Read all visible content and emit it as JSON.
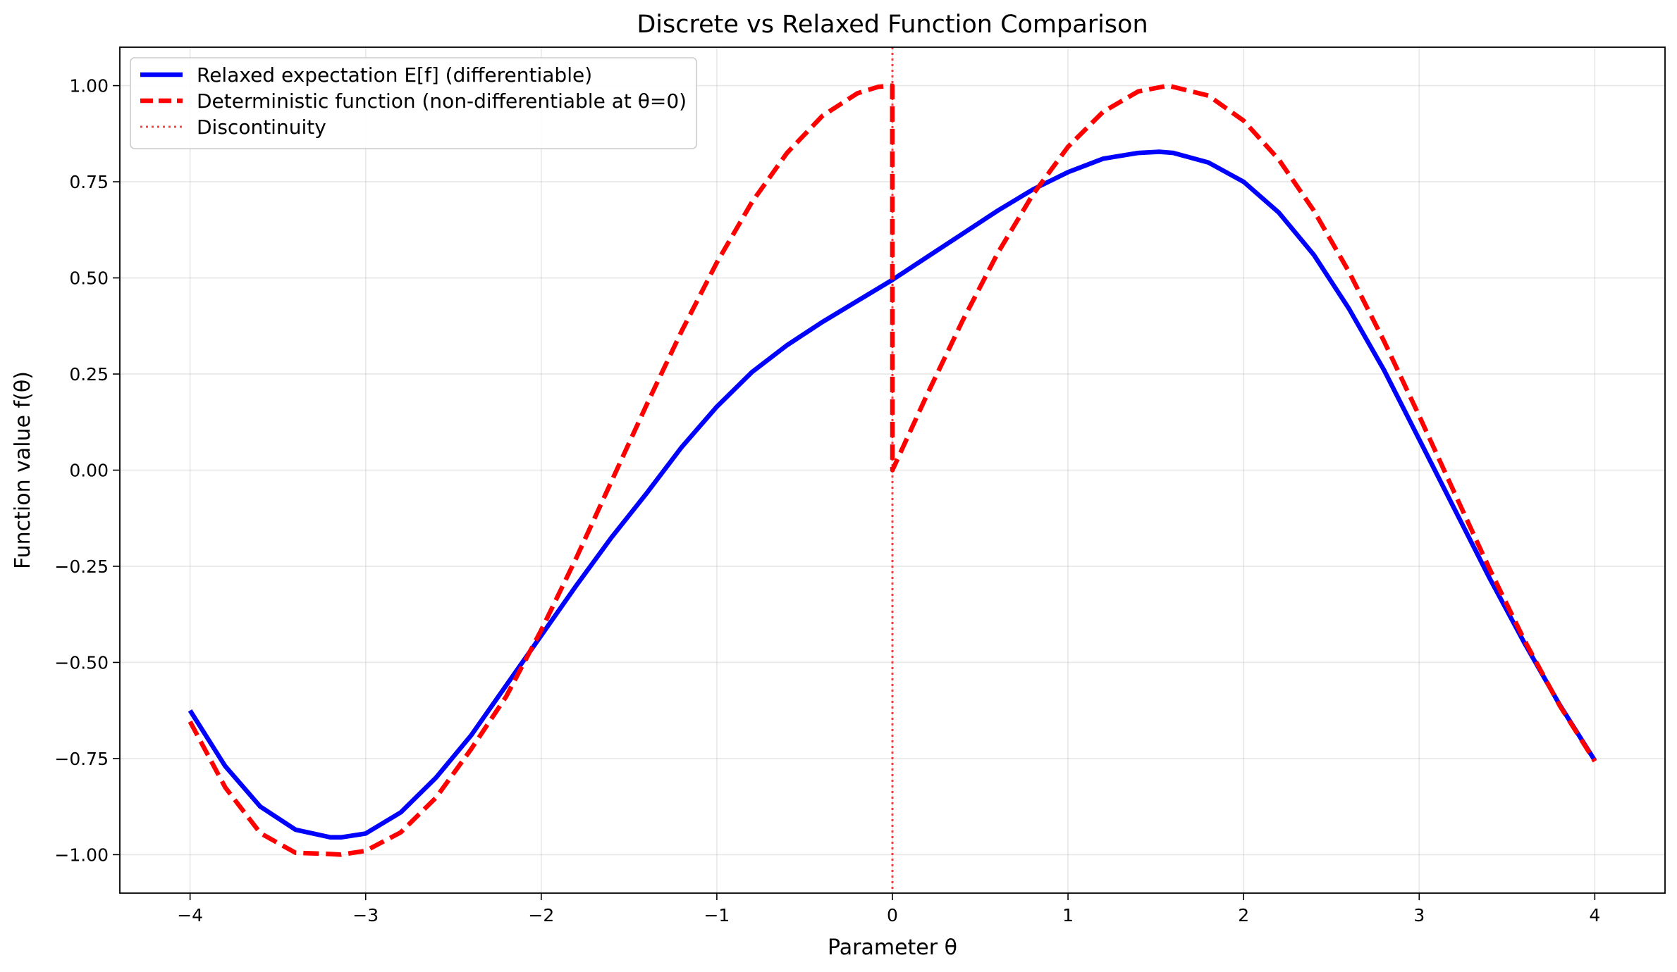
{
  "chart_data": {
    "type": "line",
    "title": "Discrete vs Relaxed Function Comparison",
    "xlabel": "Parameter θ",
    "ylabel": "Function value f(θ)",
    "xlim": [
      -4.4,
      4.4
    ],
    "ylim": [
      -1.1,
      1.1
    ],
    "x_ticks": [
      -4,
      -3,
      -2,
      -1,
      0,
      1,
      2,
      3,
      4
    ],
    "x_tick_labels": [
      "−4",
      "−3",
      "−2",
      "−1",
      "0",
      "1",
      "2",
      "3",
      "4"
    ],
    "y_ticks": [
      1.0,
      0.75,
      0.5,
      0.25,
      0.0,
      -0.25,
      -0.5,
      -0.75,
      -1.0
    ],
    "y_tick_labels": [
      "1.00",
      "0.75",
      "0.50",
      "0.25",
      "0.00",
      "−0.25",
      "−0.50",
      "−0.75",
      "−1.00"
    ],
    "grid": true,
    "legend_position": "top-left",
    "series": [
      {
        "name": "Relaxed expectation E[f] (differentiable)",
        "color": "#0000ff",
        "style": "solid",
        "x": [
          -4,
          -3.8,
          -3.6,
          -3.4,
          -3.2,
          -3.14,
          -3,
          -2.8,
          -2.6,
          -2.4,
          -2.2,
          -2,
          -1.8,
          -1.6,
          -1.4,
          -1.2,
          -1,
          -0.8,
          -0.6,
          -0.4,
          -0.2,
          0,
          0.2,
          0.4,
          0.6,
          0.8,
          1,
          1.2,
          1.4,
          1.52,
          1.6,
          1.8,
          2,
          2.2,
          2.4,
          2.6,
          2.8,
          3,
          3.2,
          3.4,
          3.6,
          3.8,
          4
        ],
        "y": [
          -0.625,
          -0.77,
          -0.875,
          -0.935,
          -0.955,
          -0.955,
          -0.945,
          -0.89,
          -0.8,
          -0.69,
          -0.56,
          -0.43,
          -0.3,
          -0.175,
          -0.06,
          0.06,
          0.165,
          0.255,
          0.325,
          0.385,
          0.44,
          0.495,
          0.555,
          0.615,
          0.675,
          0.73,
          0.775,
          0.81,
          0.825,
          0.828,
          0.825,
          0.8,
          0.75,
          0.67,
          0.56,
          0.42,
          0.26,
          0.08,
          -0.1,
          -0.28,
          -0.45,
          -0.61,
          -0.755
        ]
      },
      {
        "name": "Deterministic function (non-differentiable at θ=0)",
        "color": "#ff0000",
        "style": "dashed",
        "x": [
          -4,
          -3.8,
          -3.6,
          -3.4,
          -3.2,
          -3.1416,
          -3,
          -2.8,
          -2.6,
          -2.4,
          -2.2,
          -2,
          -1.8,
          -1.6,
          -1.4,
          -1.2,
          -1,
          -0.8,
          -0.6,
          -0.4,
          -0.2,
          -0.08,
          -0.001,
          0,
          0.2,
          0.4,
          0.6,
          0.8,
          1,
          1.2,
          1.4,
          1.5708,
          1.8,
          2,
          2.2,
          2.4,
          2.6,
          2.8,
          3,
          3.2,
          3.4,
          3.6,
          3.8,
          4
        ],
        "y": [
          -0.654,
          -0.825,
          -0.944,
          -0.995,
          -0.9983,
          -1.0,
          -0.99,
          -0.942,
          -0.852,
          -0.726,
          -0.589,
          -0.416,
          -0.228,
          -0.029,
          0.17,
          0.362,
          0.54,
          0.697,
          0.825,
          0.921,
          0.98,
          0.997,
          1.0,
          0.0,
          0.199,
          0.389,
          0.565,
          0.717,
          0.841,
          0.932,
          0.985,
          1.0,
          0.974,
          0.909,
          0.808,
          0.675,
          0.516,
          0.335,
          0.141,
          -0.058,
          -0.256,
          -0.443,
          -0.612,
          -0.757
        ]
      }
    ],
    "annotations": [
      {
        "name": "Discontinuity",
        "type": "vertical_line",
        "x": 0,
        "color": "#ff0000",
        "style": "dotted"
      }
    ]
  }
}
